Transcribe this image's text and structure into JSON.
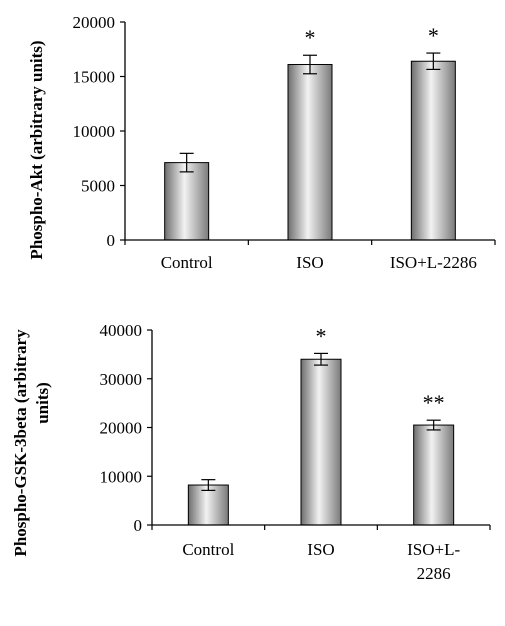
{
  "chart_data": [
    {
      "type": "bar",
      "title": "",
      "xlabel": "",
      "ylabel": "Phospho-Akt (arbitrary units)",
      "ylim": [
        0,
        20000
      ],
      "yticks": [
        "20000",
        "15000",
        "10000",
        "5000",
        "0"
      ],
      "grid": false,
      "categories": [
        "Control",
        "ISO",
        "ISO+L-2286"
      ],
      "values": [
        7100,
        16100,
        16400
      ],
      "errors": [
        850,
        850,
        750
      ],
      "annotations": [
        "",
        "*",
        "*"
      ],
      "bar_color": "#b8b8b8"
    },
    {
      "type": "bar",
      "title": "",
      "xlabel": "",
      "ylabel_lines": [
        "Phospho-GSK-3beta (arbitrary",
        "units)"
      ],
      "ylim": [
        0,
        40000
      ],
      "yticks": [
        "40000",
        "30000",
        "20000",
        "10000",
        "0"
      ],
      "grid": false,
      "categories": [
        [
          "Control"
        ],
        [
          "ISO"
        ],
        [
          "ISO+L-",
          "2286"
        ]
      ],
      "values": [
        8200,
        34000,
        20500
      ],
      "errors": [
        1100,
        1200,
        1000
      ],
      "annotations": [
        "",
        "*",
        "**"
      ],
      "bar_color": "#b8b8b8"
    }
  ]
}
